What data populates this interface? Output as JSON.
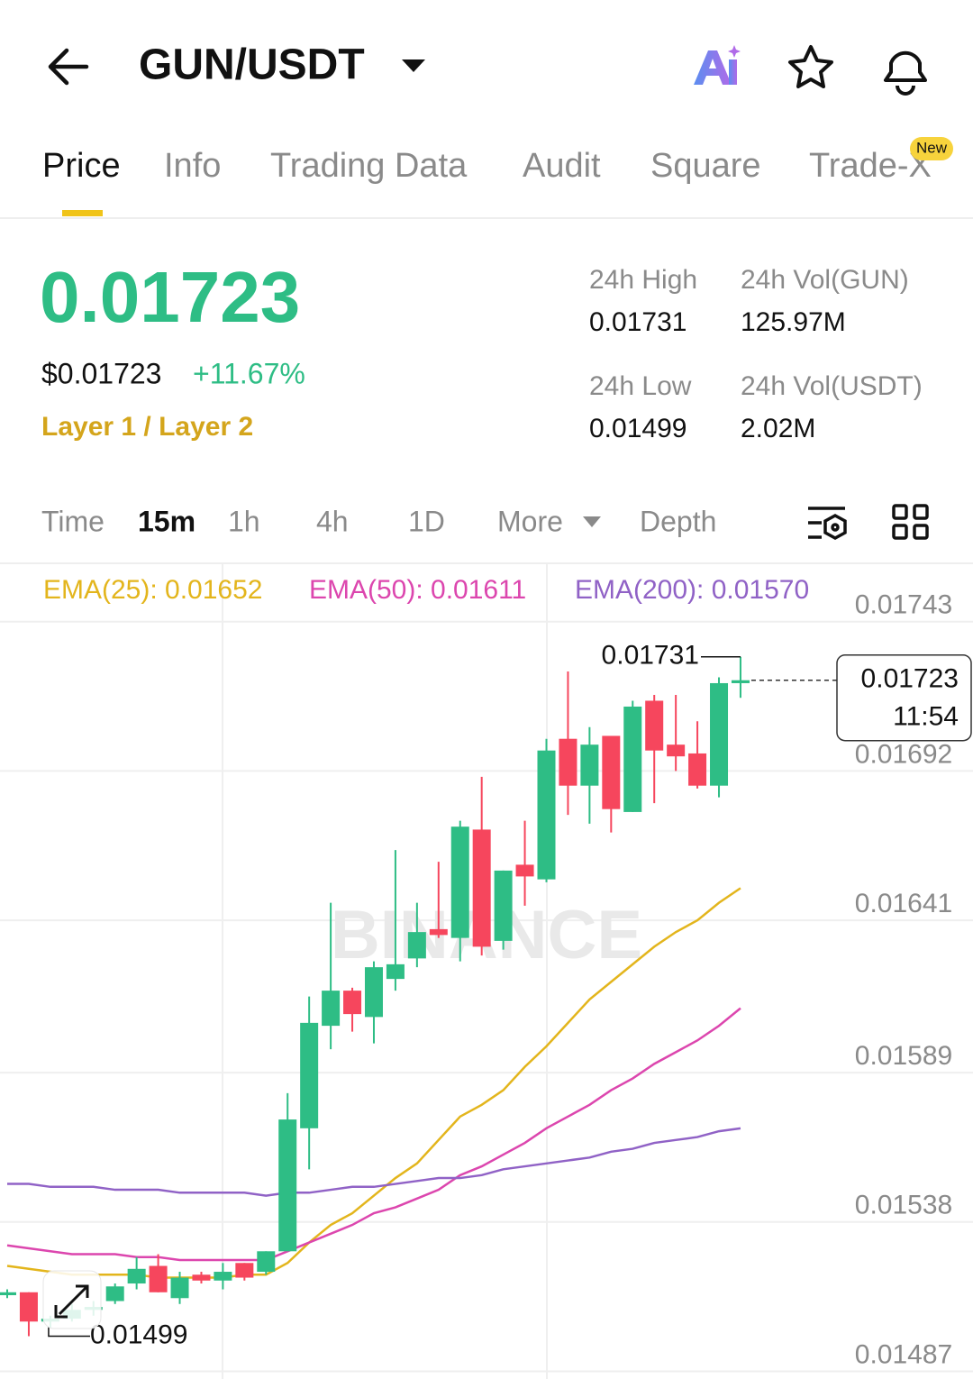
{
  "header": {
    "pair": "GUN/USDT"
  },
  "tabs": [
    "Price",
    "Info",
    "Trading Data",
    "Audit",
    "Square",
    "Trade-X"
  ],
  "tab_badge": "New",
  "price": {
    "last": "0.01723",
    "usd": "$0.01723",
    "change": "+11.67%",
    "tag": "Layer 1 / Layer 2"
  },
  "stats": [
    {
      "label": "24h High",
      "value": "0.01731"
    },
    {
      "label": "24h Vol(GUN)",
      "value": "125.97M"
    },
    {
      "label": "24h Low",
      "value": "0.01499"
    },
    {
      "label": "24h Vol(USDT)",
      "value": "2.02M"
    }
  ],
  "intervals": [
    "Time",
    "15m",
    "1h",
    "4h",
    "1D",
    "More",
    "Depth"
  ],
  "chart_data": {
    "type": "candlestick",
    "watermark": "BINANCE",
    "up_color": "#2ebd85",
    "down_color": "#f6465d",
    "ylim": [
      0.01485,
      0.01762
    ],
    "yticks": [
      0.01743,
      0.01692,
      0.01641,
      0.01589,
      0.01538,
      0.01487
    ],
    "grid": true,
    "candles": [
      {
        "open": 0.01513,
        "high": 0.01515,
        "low": 0.01512,
        "close": 0.01514
      },
      {
        "open": 0.01514,
        "high": 0.01514,
        "low": 0.01499,
        "close": 0.01504
      },
      {
        "open": 0.01504,
        "high": 0.01506,
        "low": 0.01502,
        "close": 0.01505
      },
      {
        "open": 0.01505,
        "high": 0.0151,
        "low": 0.01504,
        "close": 0.01508
      },
      {
        "open": 0.01508,
        "high": 0.01511,
        "low": 0.01506,
        "close": 0.01509
      },
      {
        "open": 0.01511,
        "high": 0.01517,
        "low": 0.0151,
        "close": 0.01516
      },
      {
        "open": 0.01517,
        "high": 0.01526,
        "low": 0.01515,
        "close": 0.01522
      },
      {
        "open": 0.01523,
        "high": 0.01527,
        "low": 0.01514,
        "close": 0.01514
      },
      {
        "open": 0.01512,
        "high": 0.01521,
        "low": 0.0151,
        "close": 0.01519
      },
      {
        "open": 0.0152,
        "high": 0.01521,
        "low": 0.01517,
        "close": 0.01518
      },
      {
        "open": 0.01518,
        "high": 0.01524,
        "low": 0.01515,
        "close": 0.01521
      },
      {
        "open": 0.01524,
        "high": 0.01524,
        "low": 0.01518,
        "close": 0.01519
      },
      {
        "open": 0.01521,
        "high": 0.01528,
        "low": 0.0152,
        "close": 0.01528
      },
      {
        "open": 0.01528,
        "high": 0.01582,
        "low": 0.01528,
        "close": 0.01573
      },
      {
        "open": 0.0157,
        "high": 0.01615,
        "low": 0.01556,
        "close": 0.01606
      },
      {
        "open": 0.01605,
        "high": 0.01647,
        "low": 0.01597,
        "close": 0.01617
      },
      {
        "open": 0.01617,
        "high": 0.01618,
        "low": 0.01603,
        "close": 0.01609
      },
      {
        "open": 0.01608,
        "high": 0.01627,
        "low": 0.01599,
        "close": 0.01625
      },
      {
        "open": 0.01621,
        "high": 0.01665,
        "low": 0.01617,
        "close": 0.01626
      },
      {
        "open": 0.01628,
        "high": 0.01647,
        "low": 0.01625,
        "close": 0.01637
      },
      {
        "open": 0.01638,
        "high": 0.01661,
        "low": 0.01635,
        "close": 0.01636
      },
      {
        "open": 0.01635,
        "high": 0.01675,
        "low": 0.01627,
        "close": 0.01673
      },
      {
        "open": 0.01672,
        "high": 0.0169,
        "low": 0.01629,
        "close": 0.01632
      },
      {
        "open": 0.01634,
        "high": 0.01658,
        "low": 0.01631,
        "close": 0.01658
      },
      {
        "open": 0.0166,
        "high": 0.01675,
        "low": 0.01646,
        "close": 0.01656
      },
      {
        "open": 0.01655,
        "high": 0.01703,
        "low": 0.01654,
        "close": 0.01699
      },
      {
        "open": 0.01703,
        "high": 0.01726,
        "low": 0.01677,
        "close": 0.01687
      },
      {
        "open": 0.01687,
        "high": 0.01707,
        "low": 0.01674,
        "close": 0.01701
      },
      {
        "open": 0.01704,
        "high": 0.01704,
        "low": 0.01671,
        "close": 0.01679
      },
      {
        "open": 0.01678,
        "high": 0.01716,
        "low": 0.01678,
        "close": 0.01714
      },
      {
        "open": 0.01716,
        "high": 0.01718,
        "low": 0.01681,
        "close": 0.01699
      },
      {
        "open": 0.01701,
        "high": 0.01718,
        "low": 0.01692,
        "close": 0.01697
      },
      {
        "open": 0.01698,
        "high": 0.01709,
        "low": 0.01686,
        "close": 0.01687
      },
      {
        "open": 0.01687,
        "high": 0.01724,
        "low": 0.01683,
        "close": 0.01722
      },
      {
        "open": 0.01722,
        "high": 0.01731,
        "low": 0.01717,
        "close": 0.01723
      }
    ],
    "series": [
      {
        "name": "EMA(25): 0.01652",
        "color": "#e3b51c",
        "values": [
          0.01523,
          0.01522,
          0.01521,
          0.0152,
          0.0152,
          0.0152,
          0.0152,
          0.01519,
          0.01519,
          0.01519,
          0.01519,
          0.0152,
          0.0152,
          0.01524,
          0.01531,
          0.01537,
          0.01541,
          0.01547,
          0.01553,
          0.01558,
          0.01566,
          0.01574,
          0.01578,
          0.01583,
          0.01591,
          0.01598,
          0.01606,
          0.01614,
          0.0162,
          0.01626,
          0.01632,
          0.01637,
          0.01641,
          0.01647,
          0.01652
        ]
      },
      {
        "name": "EMA(50): 0.01611",
        "color": "#dc46ae",
        "values": [
          0.0153,
          0.01529,
          0.01528,
          0.01527,
          0.01527,
          0.01527,
          0.01526,
          0.01526,
          0.01525,
          0.01525,
          0.01525,
          0.01525,
          0.01525,
          0.01528,
          0.01531,
          0.01534,
          0.01537,
          0.01541,
          0.01543,
          0.01546,
          0.01549,
          0.01554,
          0.01557,
          0.01561,
          0.01565,
          0.0157,
          0.01574,
          0.01578,
          0.01583,
          0.01587,
          0.01592,
          0.01596,
          0.016,
          0.01605,
          0.01611
        ]
      },
      {
        "name": "EMA(200): 0.01570",
        "color": "#9062c6",
        "values": [
          0.01551,
          0.01551,
          0.0155,
          0.0155,
          0.0155,
          0.01549,
          0.01549,
          0.01549,
          0.01548,
          0.01548,
          0.01548,
          0.01548,
          0.01547,
          0.01548,
          0.01548,
          0.01549,
          0.0155,
          0.0155,
          0.01551,
          0.01552,
          0.01553,
          0.01553,
          0.01554,
          0.01556,
          0.01557,
          0.01558,
          0.01559,
          0.0156,
          0.01562,
          0.01563,
          0.01565,
          0.01566,
          0.01567,
          0.01569,
          0.0157
        ]
      }
    ],
    "high_annotation": 0.01731,
    "low_annotation": 0.01499,
    "price_tag": {
      "value": 0.01723,
      "countdown": "11:54"
    }
  }
}
